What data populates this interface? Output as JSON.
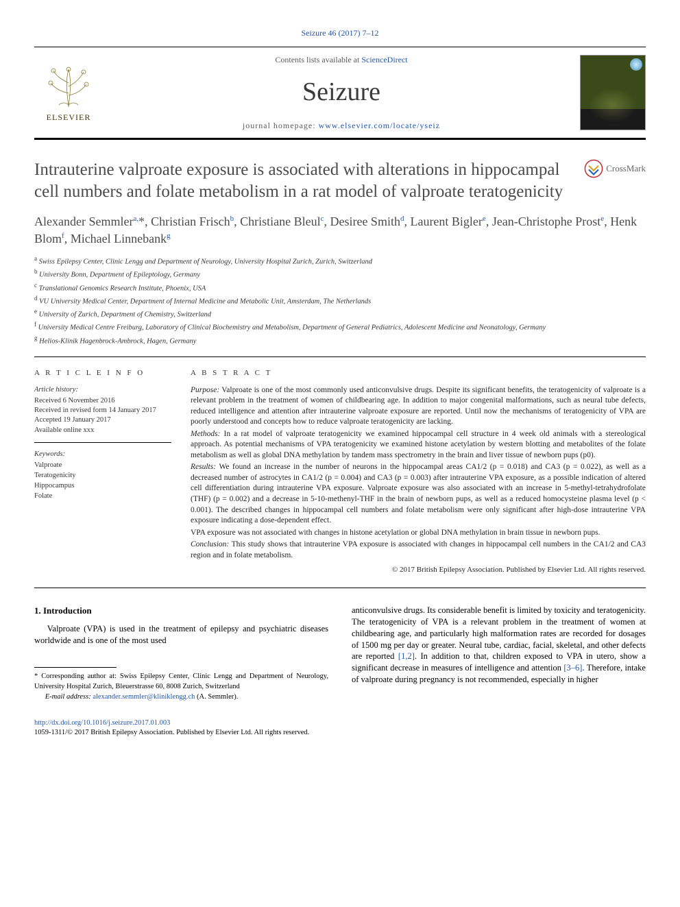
{
  "journal_ref": "Seizure 46 (2017) 7–12",
  "header": {
    "contents_prefix": "Contents lists available at ",
    "contents_link": "ScienceDirect",
    "journal_title": "Seizure",
    "homepage_prefix": "journal homepage: ",
    "homepage_link": "www.elsevier.com/locate/yseiz",
    "elsevier_label": "ELSEVIER"
  },
  "crossmark": "CrossMark",
  "article": {
    "title": "Intrauterine valproate exposure is associated with alterations in hippocampal cell numbers and folate metabolism in a rat model of valproate teratogenicity",
    "authors_html": "Alexander Semmler<sup>a,</sup><span class='star'>*</span>, Christian Frisch<sup>b</sup>, Christiane Bleul<sup>c</sup>, Desiree Smith<sup>d</sup>, Laurent Bigler<sup>e</sup>, Jean-Christophe Prost<sup>e</sup>, Henk Blom<sup>f</sup>, Michael Linnebank<sup>g</sup>",
    "affiliations": [
      {
        "sup": "a",
        "text": "Swiss Epilepsy Center, Clinic Lengg and Department of Neurology, University Hospital Zurich, Zurich, Switzerland"
      },
      {
        "sup": "b",
        "text": "University Bonn, Department of Epileptology, Germany"
      },
      {
        "sup": "c",
        "text": "Translational Genomics Research Institute, Phoenix, USA"
      },
      {
        "sup": "d",
        "text": "VU University Medical Center, Department of Internal Medicine and Metabolic Unit, Amsterdam, The Netherlands"
      },
      {
        "sup": "e",
        "text": "University of Zurich, Department of Chemistry, Switzerland"
      },
      {
        "sup": "f",
        "text": "University Medical Centre Freiburg, Laboratory of Clinical Biochemistry and Metabolism, Department of General Pediatrics, Adolescent Medicine and Neonatology, Germany"
      },
      {
        "sup": "g",
        "text": "Helios-Klinik Hagenbrock-Ambrock, Hagen, Germany"
      }
    ]
  },
  "info": {
    "heading": "A R T I C L E  I N F O",
    "history_label": "Article history:",
    "history": [
      "Received 6 November 2016",
      "Received in revised form 14 January 2017",
      "Accepted 19 January 2017",
      "Available online xxx"
    ],
    "keywords_label": "Keywords:",
    "keywords": [
      "Valproate",
      "Teratogenicity",
      "Hippocampus",
      "Folate"
    ]
  },
  "abstract": {
    "heading": "A B S T R A C T",
    "purpose_label": "Purpose:",
    "purpose": " Valproate is one of the most commonly used anticonvulsive drugs. Despite its significant benefits, the teratogenicity of valproate is a relevant problem in the treatment of women of childbearing age. In addition to major congenital malformations, such as neural tube defects, reduced intelligence and attention after intrauterine valproate exposure are reported. Until now the mechanisms of teratogenicity of VPA are poorly understood and concepts how to reduce valproate teratogenicity are lacking.",
    "methods_label": "Methods:",
    "methods": " In a rat model of valproate teratogenicity we examined hippocampal cell structure in 4 week old animals with a stereological approach. As potential mechanisms of VPA teratogenicity we examined histone acetylation by western blotting and metabolites of the folate metabolism as well as global DNA methylation by tandem mass spectrometry in the brain and liver tissue of newborn pups (p0).",
    "results_label": "Results:",
    "results": " We found an increase in the number of neurons in the hippocampal areas CA1/2 (p = 0.018) and CA3 (p = 0.022), as well as a decreased number of astrocytes in CA1/2 (p = 0.004) and CA3 (p = 0.003) after intrauterine VPA exposure, as a possible indication of altered cell differentiation during intrauterine VPA exposure. Valproate exposure was also associated with an increase in 5-methyl-tetrahydrofolate (THF) (p = 0.002) and a decrease in 5-10-methenyl-THF in the brain of newborn pups, as well as a reduced homocysteine plasma level (p < 0.001). The described changes in hippocampal cell numbers and folate metabolism were only significant after high-dose intrauterine VPA exposure indicating a dose-dependent effect.",
    "results_p2": "VPA exposure was not associated with changes in histone acetylation or global DNA methylation in brain tissue in newborn pups.",
    "conclusion_label": "Conclusion:",
    "conclusion": " This study shows that intrauterine VPA exposure is associated with changes in hippocampal cell numbers in the CA1/2 and CA3 region and in folate metabolism.",
    "copyright": "© 2017 British Epilepsy Association. Published by Elsevier Ltd. All rights reserved."
  },
  "body": {
    "section_heading": "1. Introduction",
    "col1_p1": "Valproate (VPA) is used in the treatment of epilepsy and psychiatric diseases worldwide and is one of the most used",
    "col2_p1_a": "anticonvulsive drugs. Its considerable benefit is limited by toxicity and teratogenicity. The teratogenicity of VPA is a relevant problem in the treatment of women at childbearing age, and particularly high malformation rates are recorded for dosages of 1500 mg per day or greater. Neural tube, cardiac, facial, skeletal, and other defects are reported ",
    "cite1": "[1,2]",
    "col2_p1_b": ". In addition to that, children exposed to VPA in utero, show a significant decrease in measures of intelligence and attention ",
    "cite2": "[3–6]",
    "col2_p1_c": ". Therefore, intake of valproate during pregnancy is not recommended, especially in higher"
  },
  "footnote": {
    "corr": "* Corresponding author at: Swiss Epilepsy Center, Clinic Lengg and Department of Neurology, University Hospital Zurich, Bleuerstrasse 60, 8008 Zurich, Switzerland",
    "email_label": "E-mail address: ",
    "email": "alexander.semmler@kliniklengg.ch",
    "email_suffix": " (A. Semmler)."
  },
  "footer": {
    "doi": "http://dx.doi.org/10.1016/j.seizure.2017.01.003",
    "issn_line": "1059-1311/© 2017 British Epilepsy Association. Published by Elsevier Ltd. All rights reserved."
  },
  "colors": {
    "link": "#2255aa",
    "title_grey": "#4a4a4a",
    "orange": "#E57200"
  }
}
